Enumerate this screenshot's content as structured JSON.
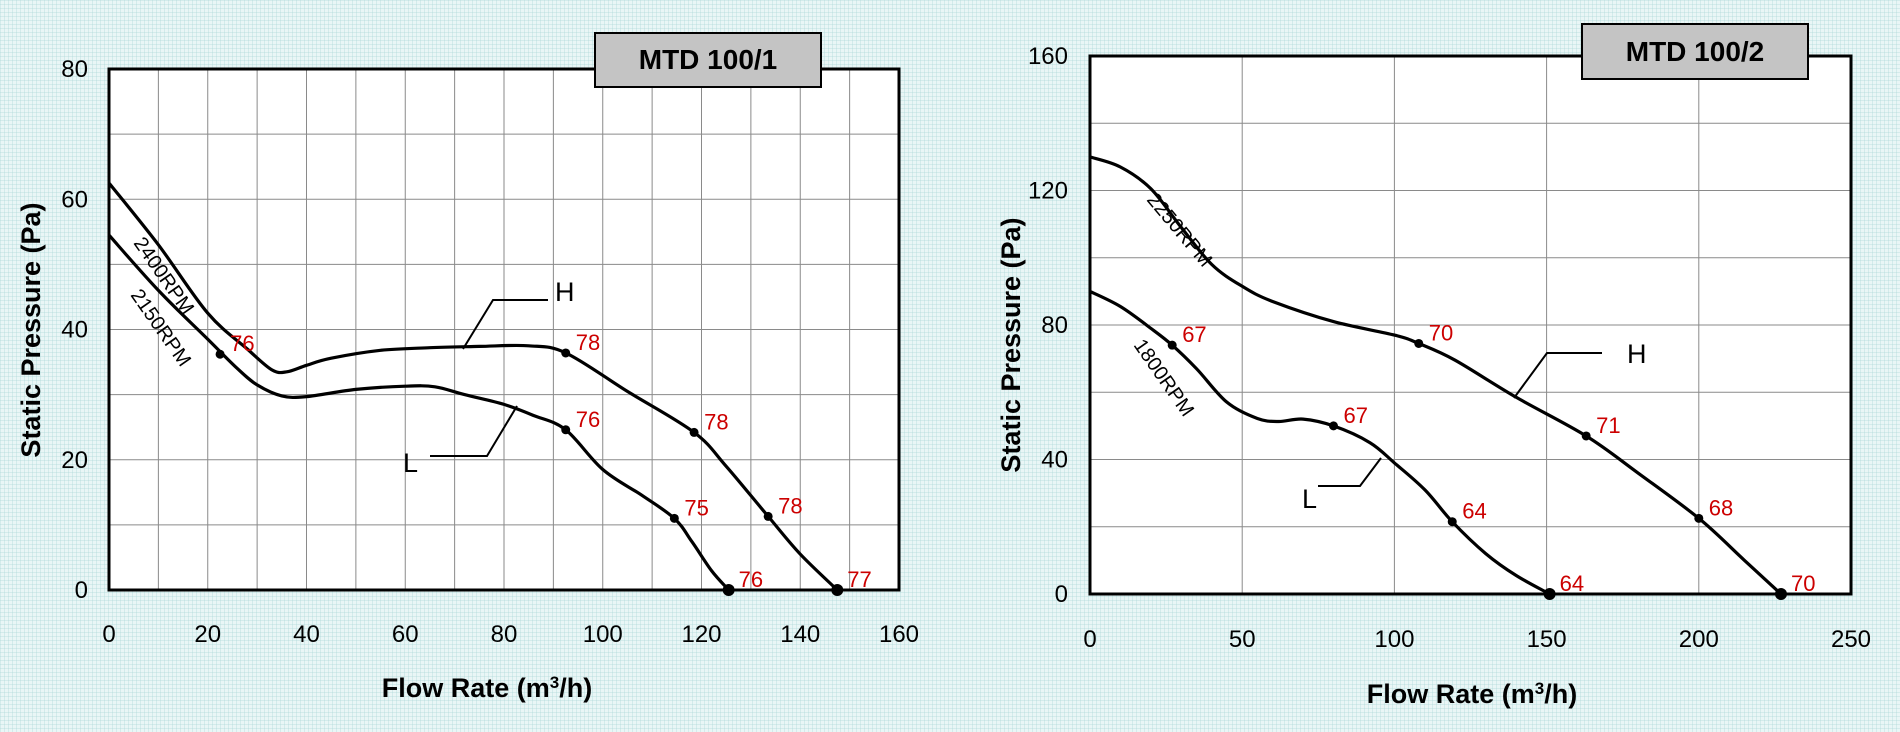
{
  "chart_data": [
    {
      "type": "line",
      "title": "MTD 100/1",
      "xlabel": "Flow Rate (m³/h)",
      "ylabel": "Static Pressure (Pa)",
      "xlim": [
        0,
        160
      ],
      "ylim": [
        0,
        80
      ],
      "x_ticks": [
        "0",
        "20",
        "40",
        "60",
        "80",
        "100",
        "120",
        "140",
        "160"
      ],
      "y_ticks": [
        "0",
        "20",
        "40",
        "60",
        "80"
      ],
      "grid": true,
      "series": [
        {
          "name": "H",
          "speed_label": "2400RPM",
          "curve": [
            [
              0,
              62.5
            ],
            [
              10,
              53
            ],
            [
              20,
              42.5
            ],
            [
              28,
              37
            ],
            [
              33,
              33.8
            ],
            [
              36,
              33.5
            ],
            [
              40,
              34.5
            ],
            [
              45,
              35.6
            ],
            [
              55,
              36.8
            ],
            [
              65,
              37.2
            ],
            [
              75,
              37.4
            ],
            [
              85,
              37.5
            ],
            [
              92.5,
              36.4
            ],
            [
              105,
              30.5
            ],
            [
              118.5,
              24.2
            ],
            [
              125,
              19
            ],
            [
              133.5,
              11.3
            ],
            [
              140,
              5.5
            ],
            [
              147.5,
              0
            ]
          ],
          "marked_points": [
            {
              "x": 92.5,
              "y": 36.4,
              "label": "78"
            },
            {
              "x": 118.5,
              "y": 24.2,
              "label": "78"
            },
            {
              "x": 133.5,
              "y": 11.3,
              "label": "78"
            },
            {
              "x": 147.5,
              "y": 0,
              "label": "77"
            }
          ]
        },
        {
          "name": "L",
          "speed_label": "2150RPM",
          "curve": [
            [
              0,
              54.5
            ],
            [
              10,
              46
            ],
            [
              20,
              38.5
            ],
            [
              26,
              34
            ],
            [
              30,
              31.5
            ],
            [
              35,
              29.8
            ],
            [
              40,
              29.7
            ],
            [
              50,
              30.8
            ],
            [
              60,
              31.3
            ],
            [
              66,
              31.2
            ],
            [
              72,
              30
            ],
            [
              80,
              28.5
            ],
            [
              86,
              26.8
            ],
            [
              92.5,
              24.6
            ],
            [
              100,
              18.5
            ],
            [
              108,
              14.5
            ],
            [
              114.5,
              11
            ],
            [
              118,
              7.5
            ],
            [
              122,
              3
            ],
            [
              125.5,
              0
            ]
          ],
          "marked_points": [
            {
              "x": 22.5,
              "y": 36.2,
              "label": "76"
            },
            {
              "x": 92.5,
              "y": 24.6,
              "label": "76"
            },
            {
              "x": 114.5,
              "y": 11,
              "label": "75"
            },
            {
              "x": 125.5,
              "y": 0,
              "label": "76"
            }
          ]
        }
      ]
    },
    {
      "type": "line",
      "title": "MTD 100/2",
      "xlabel": "Flow Rate (m³/h)",
      "ylabel": "Static Pressure (Pa)",
      "xlim": [
        0,
        250
      ],
      "ylim": [
        0,
        160
      ],
      "x_ticks": [
        "0",
        "50",
        "100",
        "150",
        "200",
        "250"
      ],
      "y_ticks": [
        "0",
        "40",
        "80",
        "120",
        "160"
      ],
      "grid": true,
      "series": [
        {
          "name": "H",
          "speed_label": "2250RPM",
          "curve": [
            [
              0,
              130
            ],
            [
              10,
              127
            ],
            [
              20,
              120.5
            ],
            [
              30,
              109
            ],
            [
              40,
              98
            ],
            [
              50,
              91.5
            ],
            [
              60,
              87
            ],
            [
              80,
              81
            ],
            [
              100,
              77
            ],
            [
              108,
              74.5
            ],
            [
              120,
              69.5
            ],
            [
              140,
              58.5
            ],
            [
              163,
              47
            ],
            [
              180,
              36
            ],
            [
              200,
              22.5
            ],
            [
              215,
              10
            ],
            [
              227,
              0
            ]
          ],
          "marked_points": [
            {
              "x": 108,
              "y": 74.5,
              "label": "70"
            },
            {
              "x": 163,
              "y": 47,
              "label": "71"
            },
            {
              "x": 200,
              "y": 22.5,
              "label": "68"
            },
            {
              "x": 227,
              "y": 0,
              "label": "70"
            }
          ]
        },
        {
          "name": "L",
          "speed_label": "1800RPM",
          "curve": [
            [
              0,
              90
            ],
            [
              10,
              85.5
            ],
            [
              20,
              79
            ],
            [
              27,
              74
            ],
            [
              35,
              67
            ],
            [
              45,
              57
            ],
            [
              55,
              52.2
            ],
            [
              62,
              51.3
            ],
            [
              70,
              52
            ],
            [
              80,
              50
            ],
            [
              92,
              45
            ],
            [
              100,
              39
            ],
            [
              110,
              31
            ],
            [
              119,
              21.5
            ],
            [
              130,
              12
            ],
            [
              140,
              5.5
            ],
            [
              151,
              0
            ]
          ],
          "marked_points": [
            {
              "x": 27,
              "y": 74,
              "label": "67"
            },
            {
              "x": 80,
              "y": 50,
              "label": "67"
            },
            {
              "x": 119,
              "y": 21.5,
              "label": "64"
            },
            {
              "x": 151,
              "y": 0,
              "label": "64"
            }
          ]
        }
      ]
    }
  ]
}
